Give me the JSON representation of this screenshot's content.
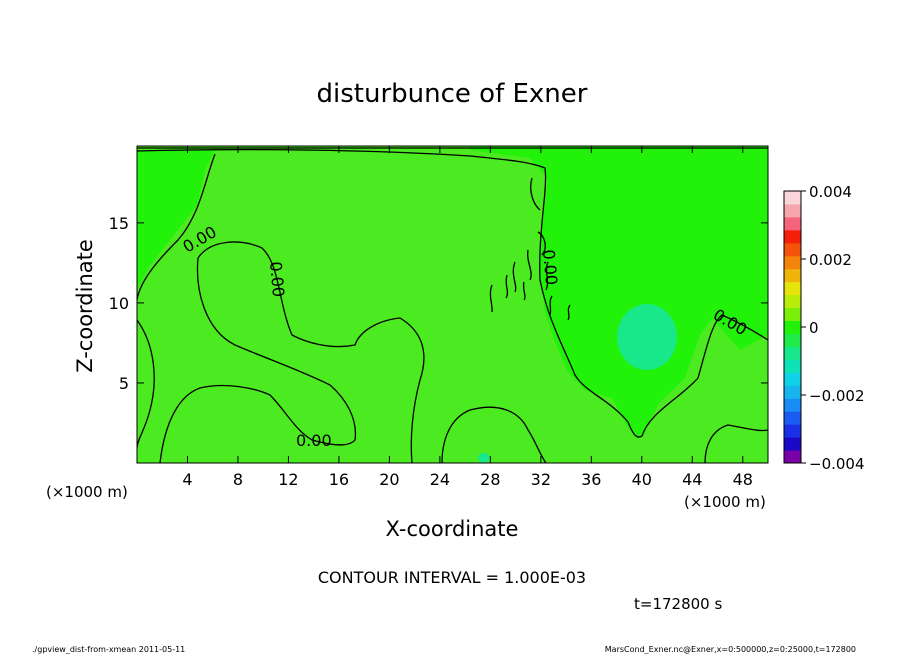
{
  "chart_data": {
    "type": "heatmap",
    "title": "disturbunce of Exner",
    "xlabel": "X-coordinate",
    "ylabel": "Z-coordinate",
    "x_unit": "(×1000 m)",
    "y_unit": "(×1000 m)",
    "xlim": [
      0,
      50
    ],
    "ylim": [
      0,
      19.8
    ],
    "x_ticks": [
      4,
      8,
      12,
      16,
      20,
      24,
      28,
      32,
      36,
      40,
      44,
      48
    ],
    "x_tick_labels": [
      "4",
      "8",
      "12",
      "16",
      "20",
      "24",
      "28",
      "32",
      "36",
      "40",
      "44",
      "48"
    ],
    "y_ticks": [
      5,
      10,
      15
    ],
    "y_tick_labels": [
      "5",
      "10",
      "15"
    ],
    "contour_label": "0.00",
    "contour_interval_text": "CONTOUR INTERVAL = 1.000E-03",
    "time_text": "t=172800 s",
    "colorbar": {
      "min": -0.004,
      "max": 0.004,
      "ticks": [
        0.004,
        0.002,
        0,
        -0.002,
        -0.004
      ],
      "tick_labels": [
        "0.004",
        "0.002",
        "0",
        "−0.002",
        "−0.004"
      ],
      "colors": [
        "#7a00a8",
        "#1a0ac8",
        "#1a2fe6",
        "#1a5cf2",
        "#1a8cf5",
        "#18b4f0",
        "#10d2e6",
        "#10e2b8",
        "#18e88a",
        "#20ea48",
        "#22f20a",
        "#7af00a",
        "#b8ec0a",
        "#e6e40a",
        "#f0b40a",
        "#f5840a",
        "#f5520a",
        "#f5200a",
        "#f5647a",
        "#f7a6ae",
        "#fad6da"
      ]
    },
    "positive_regions": [
      {
        "x": [
          0,
          7.5
        ],
        "z": [
          13,
          19.8
        ]
      },
      {
        "x": [
          27,
          50
        ],
        "z": [
          10,
          19.8
        ]
      }
    ],
    "negative_regions": [
      {
        "x": [
          38.5,
          43
        ],
        "z": [
          6.5,
          10
        ]
      }
    ]
  },
  "footer": {
    "left": "./gpview_dist-from-xmean  2011-05-11",
    "right": "MarsCond_Exner.nc@Exner,x=0:500000,z=0:25000,t=172800"
  },
  "colors": {
    "background": "#ffffff",
    "positive_fill": "#22f20a",
    "zero_fill": "#4cea20",
    "negative_fill": "#18e88a"
  }
}
